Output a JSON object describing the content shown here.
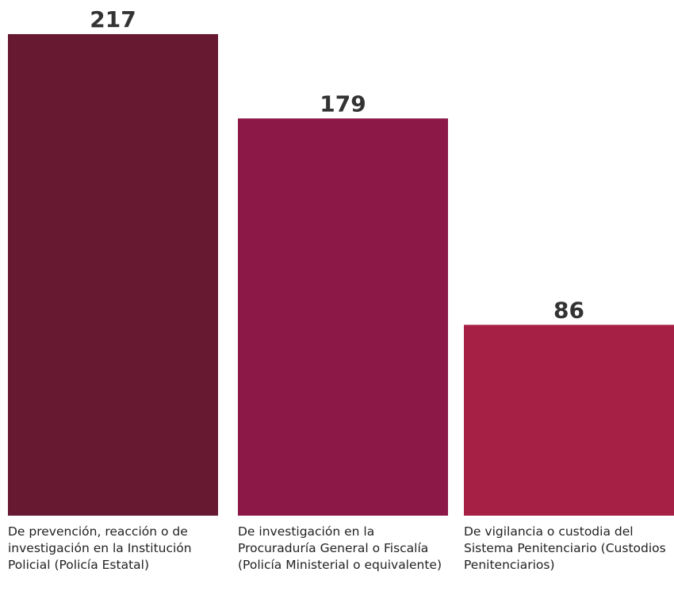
{
  "chart_data": {
    "type": "bar",
    "categories": [
      "De prevención, reacción o de investigación en la Institución Policial (Policía Estatal)",
      "De investigación en la Procuraduría General o Fiscalía (Policía Ministerial o equivalente)",
      "De vigilancia o custodia del Sistema Penitenciario (Custodios Penitenciarios)"
    ],
    "values": [
      217,
      179,
      86
    ],
    "value_labels": [
      "217",
      "179",
      "86"
    ],
    "colors": [
      "#661931",
      "#8b1847",
      "#a52044"
    ],
    "title": "",
    "xlabel": "",
    "ylabel": "",
    "ylim": [
      0,
      217
    ],
    "grid": false,
    "legend": "none"
  }
}
